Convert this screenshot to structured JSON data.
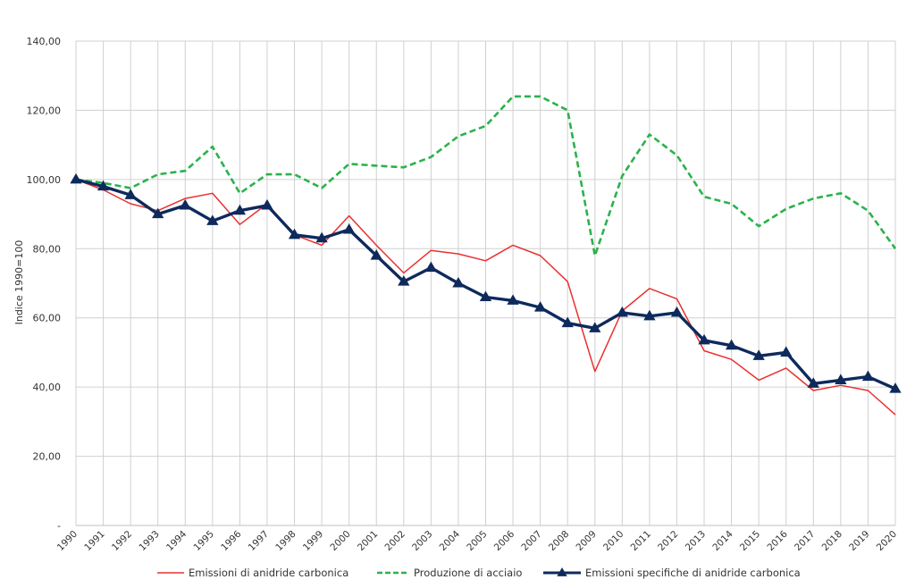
{
  "chart_data": {
    "type": "line",
    "title": "",
    "xlabel": "",
    "ylabel": "Indice 1990=100",
    "ylim": [
      0,
      140
    ],
    "yticks": [
      {
        "value": 0,
        "label": "-"
      },
      {
        "value": 20,
        "label": "20,00"
      },
      {
        "value": 40,
        "label": "40,00"
      },
      {
        "value": 60,
        "label": "60,00"
      },
      {
        "value": 80,
        "label": "80,00"
      },
      {
        "value": 100,
        "label": "100,00"
      },
      {
        "value": 120,
        "label": "120,00"
      },
      {
        "value": 140,
        "label": "140,00"
      }
    ],
    "grid": true,
    "legend": "bottom",
    "categories": [
      "1990",
      "1991",
      "1992",
      "1993",
      "1994",
      "1995",
      "1996",
      "1997",
      "1998",
      "1999",
      "2000",
      "2001",
      "2002",
      "2003",
      "2004",
      "2005",
      "2006",
      "2007",
      "2008",
      "2009",
      "2010",
      "2011",
      "2012",
      "2013",
      "2014",
      "2015",
      "2016",
      "2017",
      "2018",
      "2019",
      "2020"
    ],
    "series": [
      {
        "name": "Emissioni di anidride carbonica",
        "style": "solid",
        "marker": "none",
        "color": "#e8302f",
        "values": [
          100,
          97,
          93,
          91,
          94.5,
          96,
          87,
          93,
          84,
          81,
          89.5,
          81,
          73,
          79.5,
          78.5,
          76.5,
          81,
          78,
          70.5,
          44.5,
          62,
          68.5,
          65.5,
          50.5,
          48,
          42,
          45.5,
          39,
          40.5,
          39,
          32
        ]
      },
      {
        "name": "Produzione di acciaio",
        "style": "dashed",
        "marker": "none",
        "color": "#2bb24c",
        "values": [
          100,
          99,
          97.5,
          101.5,
          102.5,
          109.5,
          96,
          101.5,
          101.5,
          97.5,
          104.5,
          104,
          103.5,
          106.5,
          112.5,
          115.5,
          124,
          124,
          120,
          78,
          101,
          113,
          107,
          95,
          93,
          86.5,
          91.5,
          94.5,
          96,
          91,
          80
        ]
      },
      {
        "name": "Emissioni specifiche di anidride carbonica",
        "style": "solid",
        "marker": "triangle",
        "color": "#0e2a5c",
        "values": [
          100,
          98,
          95.5,
          90,
          92.5,
          88,
          91,
          92.5,
          84,
          83,
          85.5,
          78,
          70.5,
          74.5,
          70,
          66,
          65,
          63,
          58.5,
          57,
          61.5,
          60.5,
          61.5,
          53.5,
          52,
          49,
          50,
          41,
          42,
          43,
          39.5
        ]
      }
    ]
  }
}
